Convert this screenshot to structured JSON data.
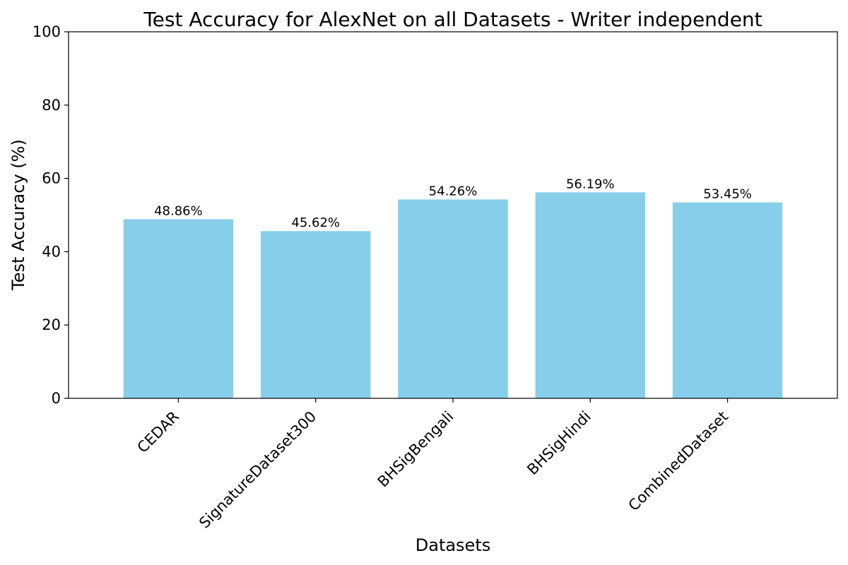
{
  "chart_data": {
    "type": "bar",
    "title": "Test Accuracy for AlexNet on all Datasets - Writer independent",
    "xlabel": "Datasets",
    "ylabel": "Test Accuracy (%)",
    "ylim": [
      0,
      100
    ],
    "yticks": [
      0,
      20,
      40,
      60,
      80,
      100
    ],
    "grid": false,
    "bar_color": "#87ceeb",
    "categories": [
      "CEDAR",
      "SignatureDataset300",
      "BHSigBengali",
      "BHSigHindi",
      "CombinedDataset"
    ],
    "values": [
      48.86,
      45.62,
      54.26,
      56.19,
      53.45
    ],
    "data_labels": [
      "48.86%",
      "45.62%",
      "54.26%",
      "56.19%",
      "53.45%"
    ]
  }
}
